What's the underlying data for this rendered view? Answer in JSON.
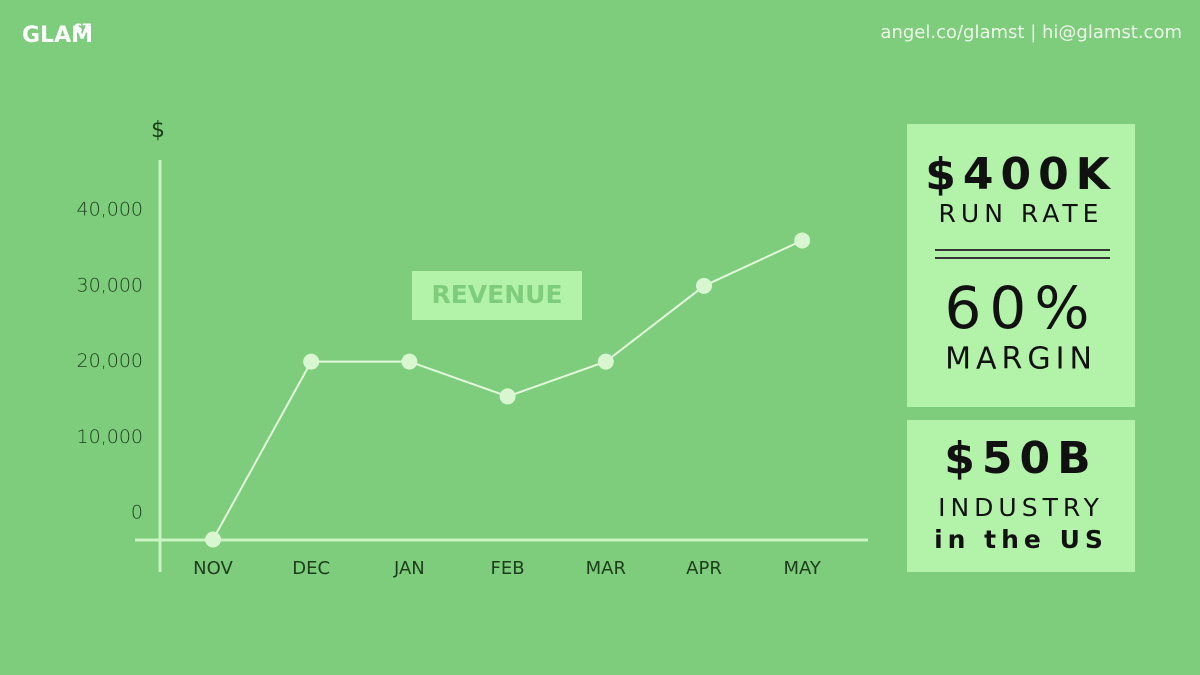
{
  "header": {
    "logo": "GLAM",
    "logo_sup": "ST",
    "contact": "angel.co/glamst | hi@glamst.com"
  },
  "chart_data": {
    "type": "line",
    "title": "REVENUE",
    "y_label": "$",
    "categories": [
      "NOV",
      "DEC",
      "JAN",
      "FEB",
      "MAR",
      "APR",
      "MAY"
    ],
    "values": [
      -3500,
      20000,
      20000,
      15400,
      20000,
      30000,
      36000
    ],
    "color": "#e3f8dd",
    "ylim": [
      -3500,
      46500
    ],
    "yticks": [
      0,
      {
        "value": 10000,
        "label": "10,000"
      },
      {
        "value": 20000,
        "label": "20,000"
      },
      {
        "value": 30000,
        "label": "30,000"
      },
      {
        "value": 40000,
        "label": "40,000"
      }
    ]
  },
  "stats": [
    {
      "value": "$400K",
      "label": "RUN RATE"
    },
    {
      "value": "60%",
      "label": "MARGIN"
    },
    {
      "value": "$50B",
      "label": "INDUSTRY",
      "label2": "in the US"
    }
  ]
}
